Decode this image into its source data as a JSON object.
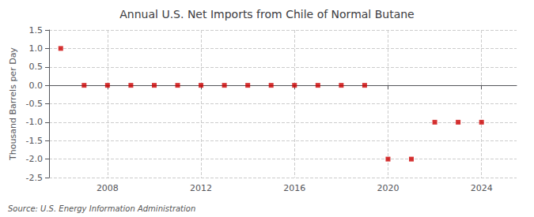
{
  "chart_data": {
    "type": "scatter",
    "title": "Annual U.S. Net Imports from Chile of Normal Butane",
    "ylabel": "Thousand Barrels per Day",
    "source": "Source: U.S. Energy Information Administration",
    "x": [
      2006,
      2007,
      2008,
      2009,
      2010,
      2011,
      2012,
      2013,
      2014,
      2015,
      2016,
      2017,
      2018,
      2019,
      2020,
      2021,
      2022,
      2023,
      2024
    ],
    "values": [
      1.0,
      0.0,
      0.0,
      0.0,
      0.0,
      0.0,
      0.0,
      0.0,
      0.0,
      0.0,
      0.0,
      0.0,
      0.0,
      0.0,
      -2.0,
      -2.0,
      -1.0,
      -1.0,
      -1.0
    ],
    "color": "#cc0000",
    "marker": "square",
    "xlim": [
      2005.5,
      2025.5
    ],
    "xticks": [
      2008,
      2012,
      2016,
      2020,
      2024
    ],
    "ylim": [
      -2.5,
      1.5
    ],
    "yticks": [
      -2.5,
      {
        "value": -2.0,
        "label": "-2.0"
      },
      -1.5,
      {
        "value": -1.0,
        "label": "-1.0"
      },
      -0.5,
      {
        "value": 0.0,
        "label": "0.0"
      },
      0.5,
      {
        "value": 1.0,
        "label": "1.0"
      },
      1.5
    ],
    "grid": true
  }
}
